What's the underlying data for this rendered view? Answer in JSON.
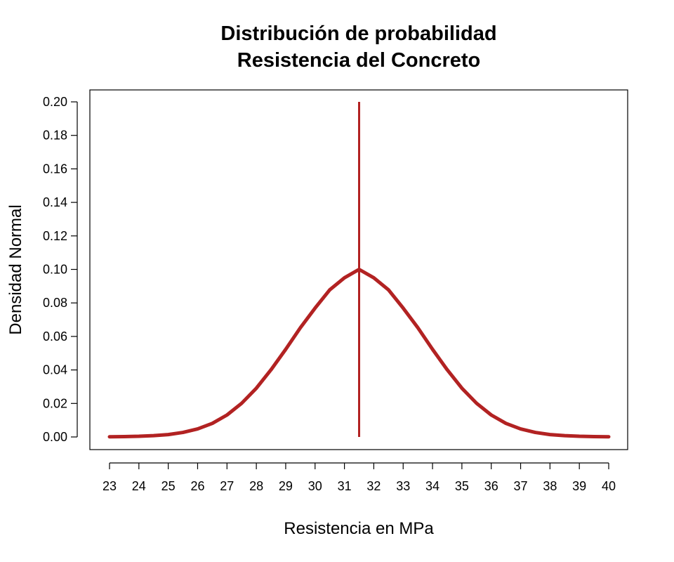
{
  "chart_data": {
    "type": "line",
    "title": "Distribución de probabilidad",
    "subtitle": "Resistencia del Concreto",
    "xlabel": "Resistencia en MPa",
    "ylabel": "Densidad Normal",
    "xlim": [
      23,
      40
    ],
    "ylim": [
      0,
      0.2
    ],
    "x_ticks": [
      "23",
      "24",
      "25",
      "26",
      "27",
      "28",
      "29",
      "30",
      "31",
      "32",
      "33",
      "34",
      "35",
      "36",
      "37",
      "38",
      "39",
      "40"
    ],
    "y_ticks": [
      "0.00",
      "0.02",
      "0.04",
      "0.06",
      "0.08",
      "0.10",
      "0.12",
      "0.14",
      "0.16",
      "0.18",
      "0.20"
    ],
    "grid": false,
    "series": [
      {
        "x": [
          23,
          23.5,
          24,
          24.5,
          25,
          25.5,
          26,
          26.5,
          27,
          27.5,
          28,
          28.5,
          29,
          29.5,
          30,
          30.5,
          31,
          31.5,
          32,
          32.5,
          33,
          33.5,
          34,
          34.5,
          35,
          35.5,
          36,
          36.5,
          37,
          37.5,
          38,
          38.5,
          39,
          39.5,
          40
        ],
        "y": [
          0.0001,
          0.0002,
          0.0004,
          0.0008,
          0.0014,
          0.0027,
          0.0048,
          0.0081,
          0.0131,
          0.0201,
          0.0291,
          0.0401,
          0.0523,
          0.0652,
          0.0769,
          0.0878,
          0.095,
          0.1,
          0.095,
          0.0878,
          0.0769,
          0.0652,
          0.0523,
          0.0401,
          0.0291,
          0.0201,
          0.0131,
          0.0081,
          0.0048,
          0.0027,
          0.0014,
          0.0008,
          0.0004,
          0.0002,
          0.0001
        ],
        "color": "#b22222"
      }
    ],
    "mean_line": {
      "x": 31.5,
      "y_bottom": 0,
      "y_top": 0.2,
      "color": "#b22222"
    }
  }
}
